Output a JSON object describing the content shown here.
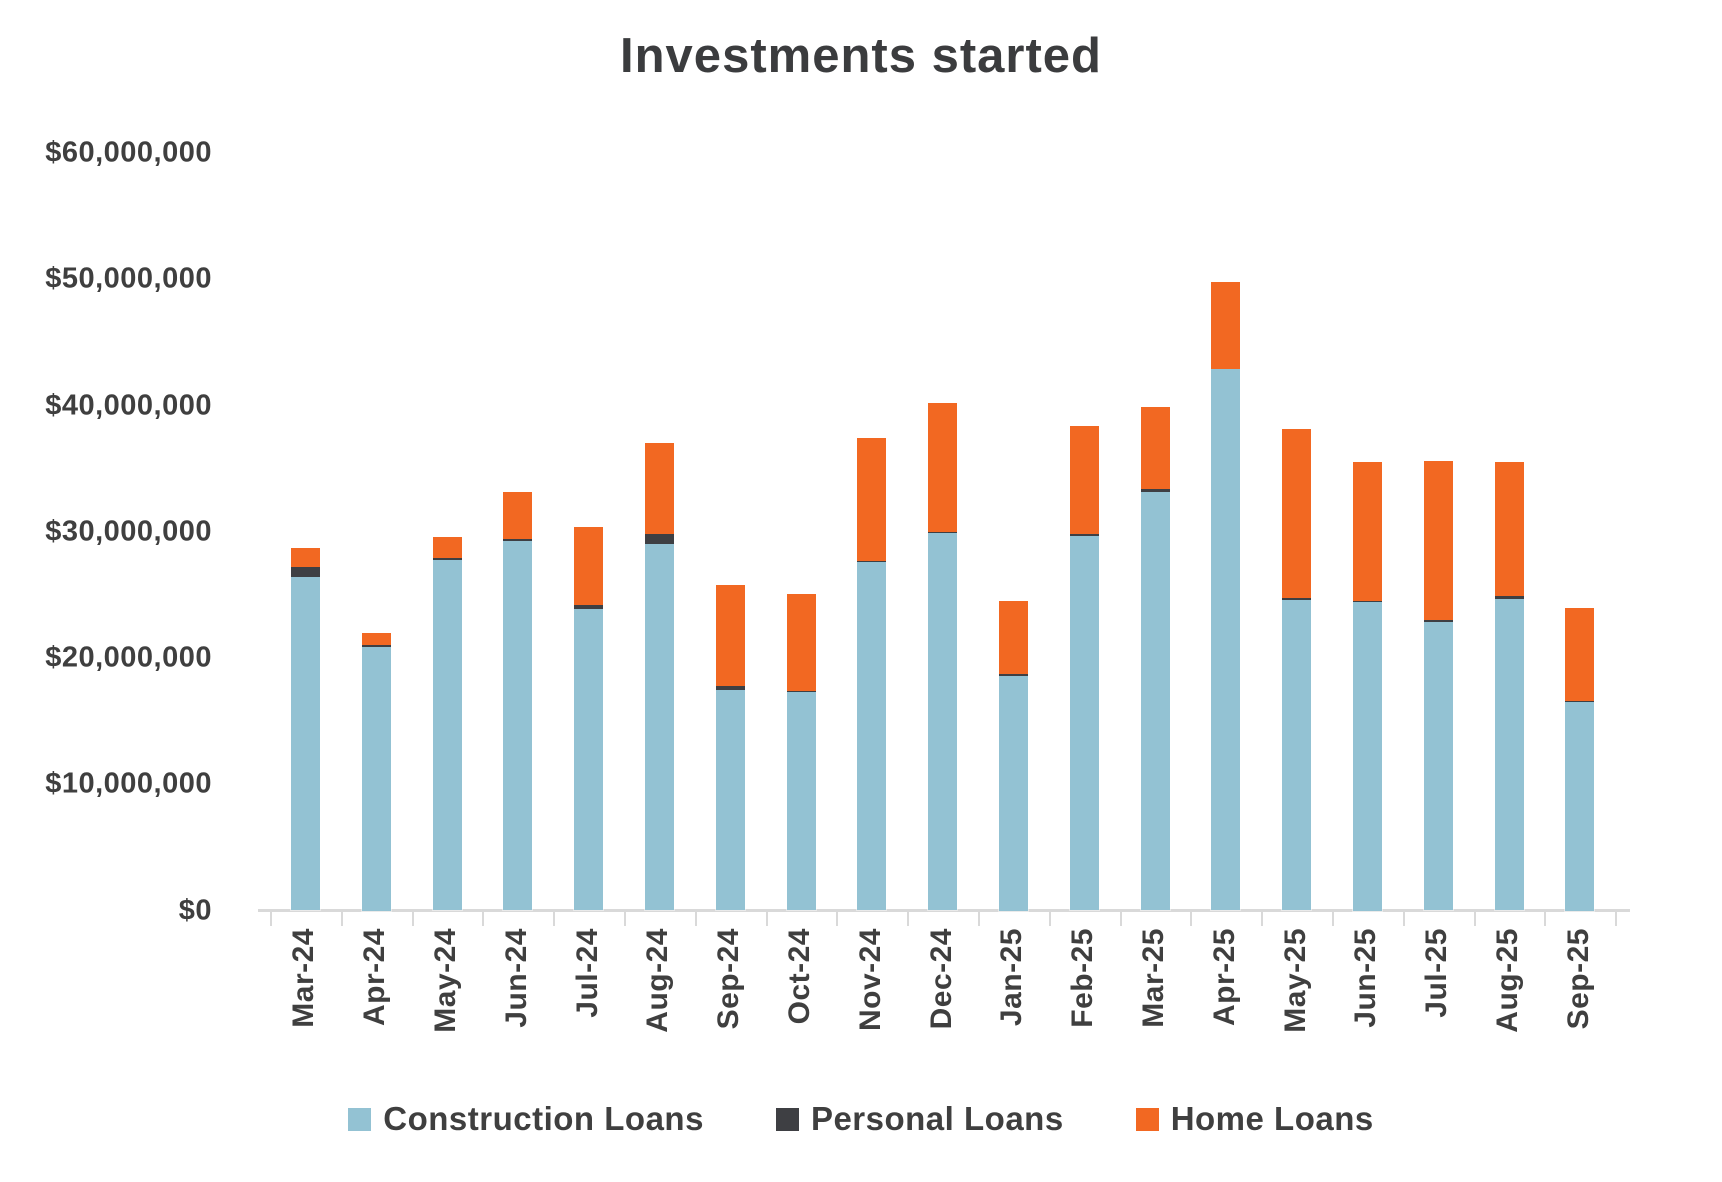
{
  "title": "Investments started",
  "colors": {
    "construction": "#93c2d3",
    "personal": "#3e3f43",
    "home": "#f26822",
    "text": "#3f3f3f",
    "axis": "#d9d9d9"
  },
  "y_axis": {
    "tick_labels": [
      "$0",
      "$10,000,000",
      "$20,000,000",
      "$30,000,000",
      "$40,000,000",
      "$50,000,000",
      "$60,000,000"
    ],
    "tick_values": [
      0,
      10000000,
      20000000,
      30000000,
      40000000,
      50000000,
      60000000
    ]
  },
  "legend": [
    {
      "label": "Construction Loans",
      "color_key": "construction"
    },
    {
      "label": "Personal Loans",
      "color_key": "personal"
    },
    {
      "label": "Home Loans",
      "color_key": "home"
    }
  ],
  "chart_data": {
    "type": "bar",
    "stacked": true,
    "title": "Investments started",
    "xlabel": "",
    "ylabel": "",
    "ylim": [
      0,
      60000000
    ],
    "grid": false,
    "legend_position": "bottom",
    "categories": [
      "Mar-24",
      "Apr-24",
      "May-24",
      "Jun-24",
      "Jul-24",
      "Aug-24",
      "Sep-24",
      "Oct-24",
      "Nov-24",
      "Dec-24",
      "Jan-25",
      "Feb-25",
      "Mar-25",
      "Apr-25",
      "May-25",
      "Jun-25",
      "Jul-25",
      "Aug-25",
      "Sep-25"
    ],
    "series": [
      {
        "name": "Construction Loans",
        "color_key": "construction",
        "values": [
          26400000,
          20900000,
          27800000,
          29300000,
          23900000,
          29000000,
          17500000,
          17300000,
          27600000,
          29900000,
          18600000,
          29700000,
          33150000,
          42900000,
          24600000,
          24400000,
          22850000,
          24700000,
          16500000
        ]
      },
      {
        "name": "Personal Loans",
        "color_key": "personal",
        "values": [
          800000,
          100000,
          150000,
          150000,
          300000,
          850000,
          250000,
          100000,
          100000,
          100000,
          100000,
          150000,
          200000,
          0,
          150000,
          100000,
          150000,
          250000,
          100000
        ]
      },
      {
        "name": "Home Loans",
        "color_key": "home",
        "values": [
          1500000,
          1000000,
          1650000,
          3700000,
          6150000,
          7200000,
          8050000,
          7700000,
          9700000,
          10200000,
          5800000,
          8500000,
          6500000,
          6900000,
          13400000,
          11000000,
          12600000,
          10600000,
          7400000
        ]
      }
    ]
  }
}
